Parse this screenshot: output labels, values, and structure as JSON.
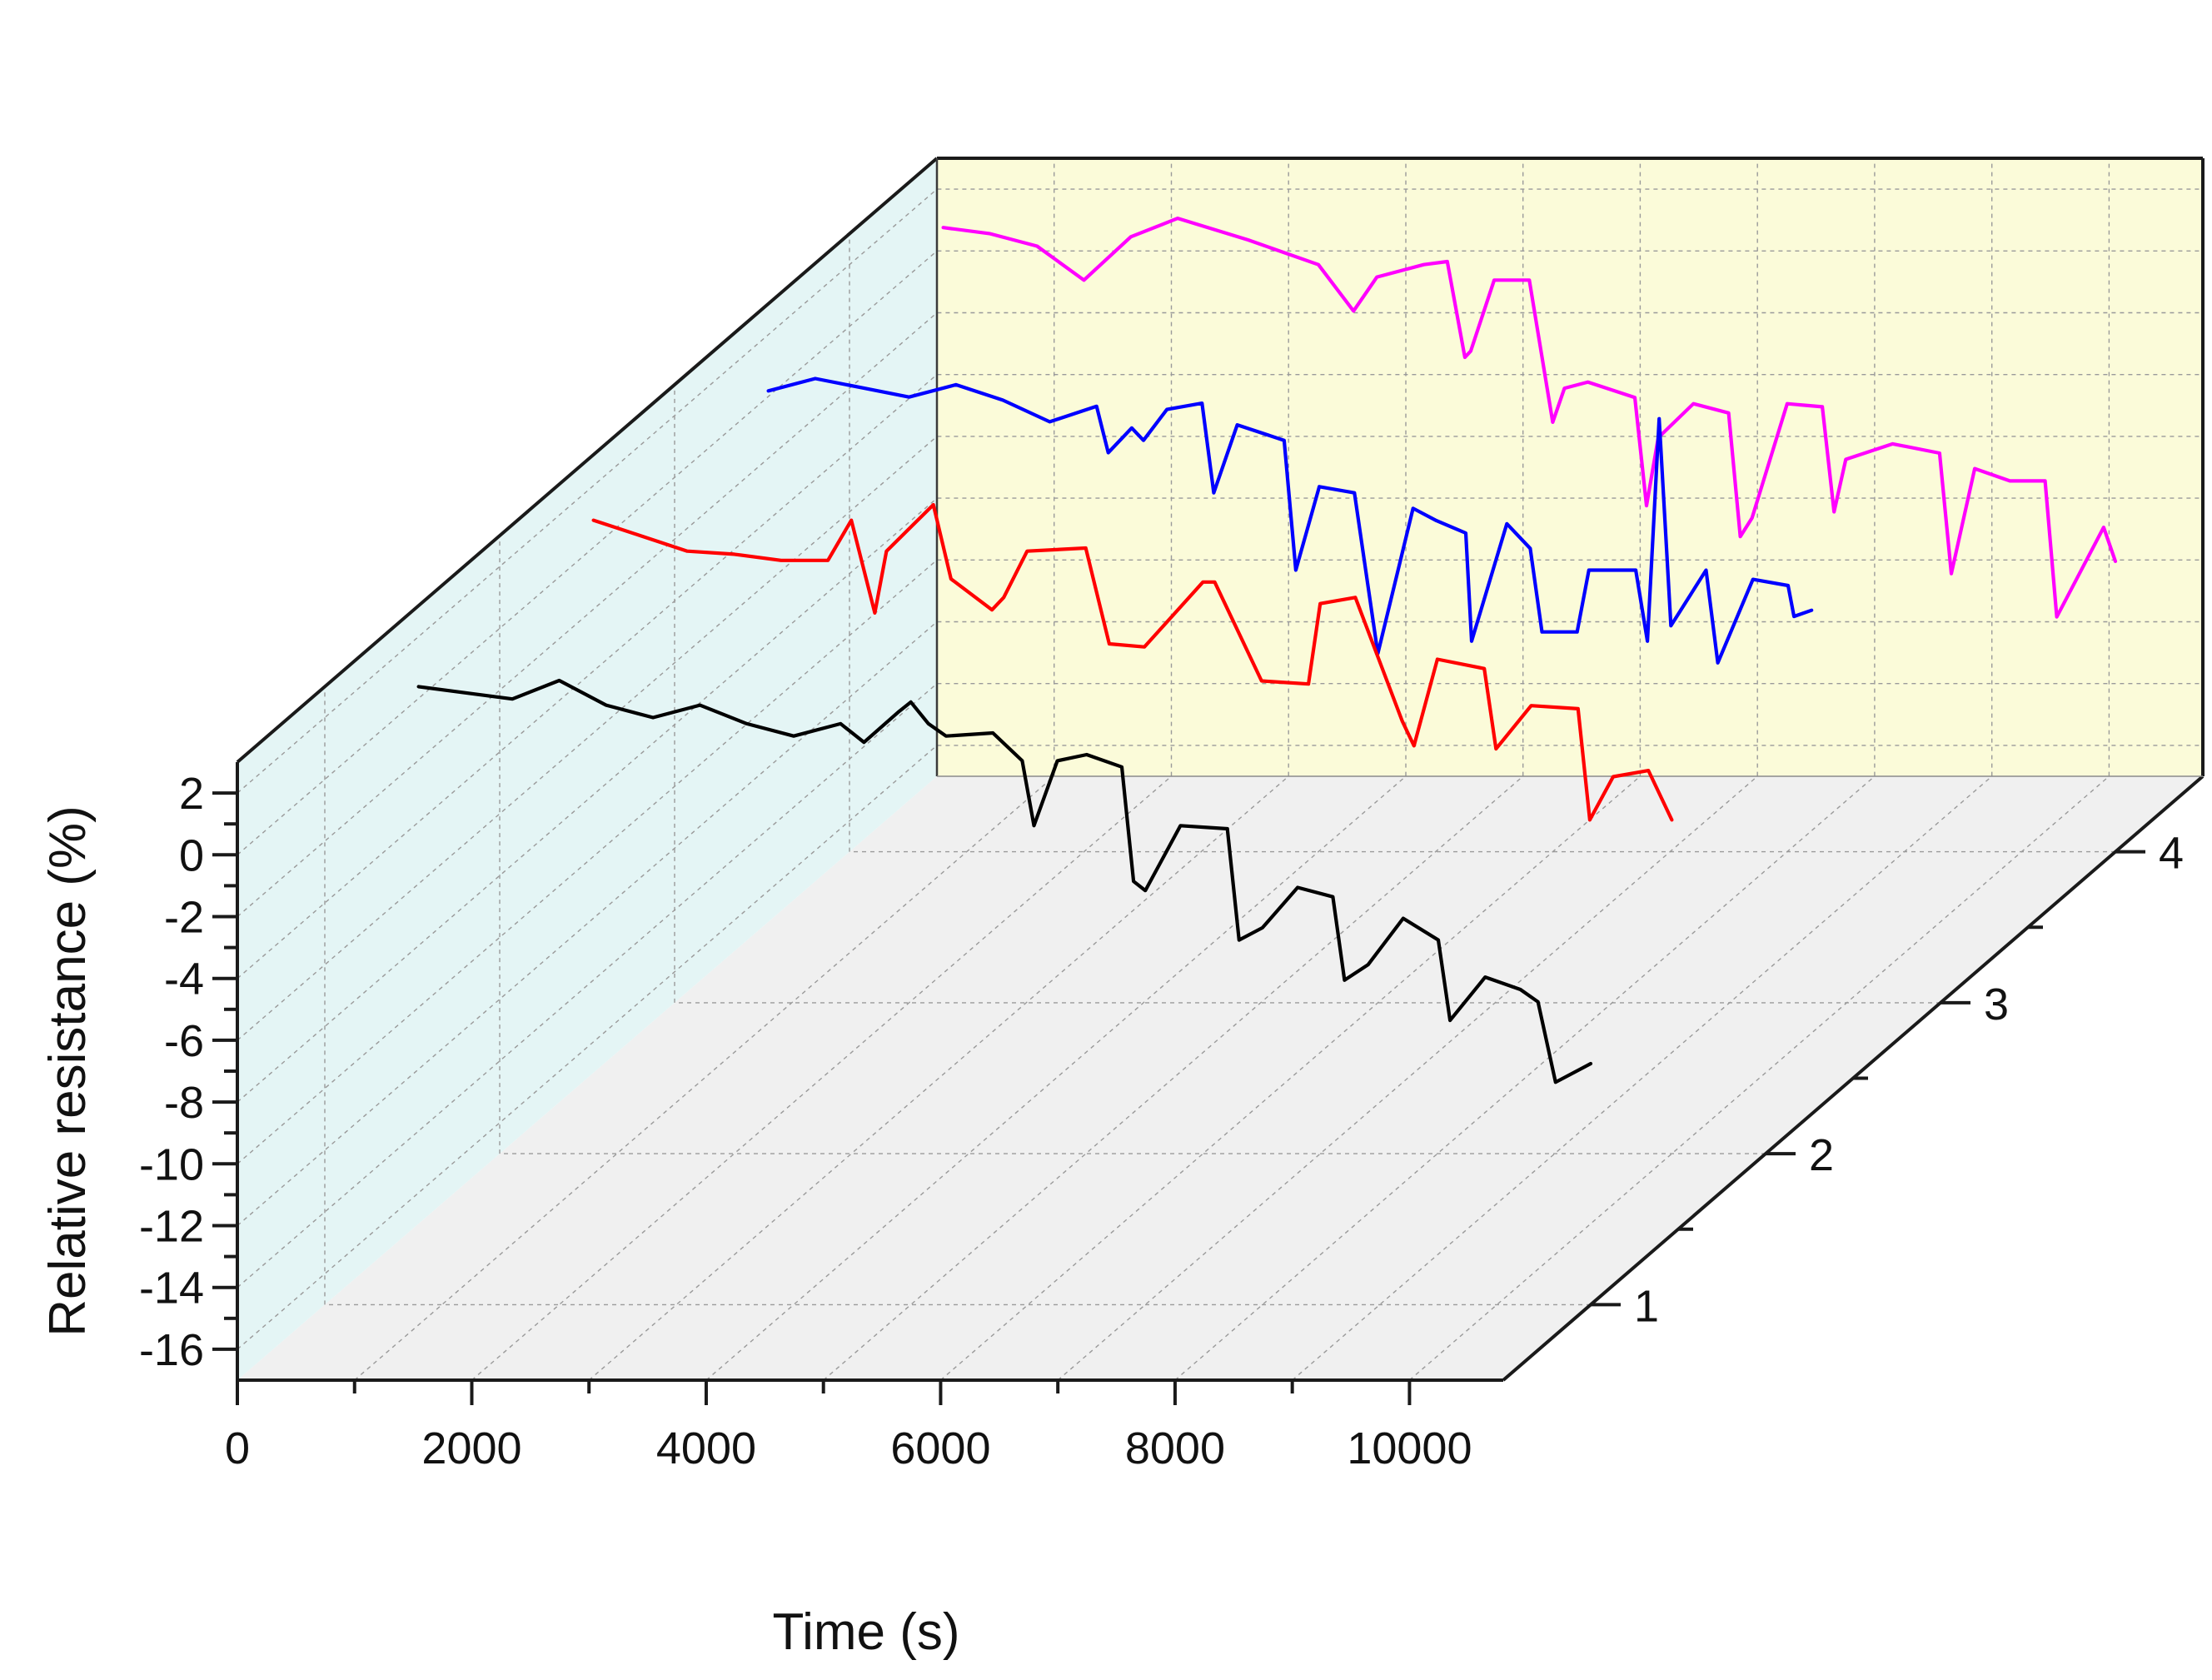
{
  "chart_data": {
    "type": "line",
    "title": "",
    "xlabel": "Time (s)",
    "ylabel": "Relative resistance (%)",
    "zlabel": "",
    "xlim": [
      0,
      10800
    ],
    "ylim": [
      -17,
      3
    ],
    "zlim": [
      0.5,
      4.5
    ],
    "x_ticks": [
      0,
      2000,
      4000,
      6000,
      8000,
      10000
    ],
    "y_ticks": [
      2,
      0,
      -2,
      -4,
      -6,
      -8,
      -10,
      -12,
      -14,
      -16
    ],
    "z_ticks": [
      1,
      2,
      3,
      4
    ],
    "grid": true,
    "colors": {
      "back_wall": "#fbfbd9",
      "side_wall": "#e4f5f5",
      "floor": "#f0f0f0"
    },
    "series": [
      {
        "z": 1,
        "color": "#000000",
        "x": [
          800,
          1200,
          1600,
          2000,
          2400,
          2800,
          3200,
          3600,
          4000,
          4400,
          4600,
          4900,
          5000,
          5150,
          5300,
          5700,
          5950,
          6050,
          6250,
          6500,
          6800,
          6900,
          7000,
          7300,
          7700,
          7800,
          8000,
          8300,
          8600,
          8700,
          8900,
          9200,
          9500,
          9600,
          9900,
          10200,
          10350,
          10500,
          10800
        ],
        "y": [
          3.0,
          2.8,
          2.6,
          3.2,
          2.4,
          2.0,
          2.4,
          1.8,
          1.4,
          1.8,
          1.2,
          2.2,
          2.5,
          1.8,
          1.4,
          1.5,
          0.6,
          -1.5,
          0.6,
          0.8,
          0.4,
          -3.3,
          -3.6,
          -1.5,
          -1.6,
          -5.2,
          -4.8,
          -3.5,
          -3.8,
          -6.5,
          -6.0,
          -4.5,
          -5.2,
          -7.8,
          -6.4,
          -6.8,
          -7.2,
          -9.8,
          -9.2
        ]
      },
      {
        "z": 2,
        "color": "#ff0000",
        "x": [
          800,
          1200,
          1600,
          2000,
          2400,
          2800,
          3000,
          3200,
          3300,
          3700,
          3850,
          4200,
          4300,
          4500,
          5000,
          5200,
          5500,
          6000,
          6100,
          6500,
          6900,
          7000,
          7300,
          7700,
          7800,
          8000,
          8400,
          8500,
          8800,
          9200,
          9300,
          9500,
          9800,
          10000
        ],
        "y": [
          3.5,
          3.0,
          2.5,
          2.4,
          2.2,
          2.2,
          3.5,
          0.5,
          2.5,
          4.0,
          1.6,
          0.6,
          1.0,
          2.5,
          2.6,
          -0.5,
          -0.6,
          1.5,
          1.5,
          -1.7,
          -1.8,
          0.8,
          1.0,
          -3.0,
          -3.8,
          -1.0,
          -1.3,
          -3.9,
          -2.5,
          -2.6,
          -6.2,
          -4.8,
          -4.6,
          -6.2
        ]
      },
      {
        "z": 3,
        "color": "#0000ff",
        "x": [
          800,
          1200,
          1600,
          2000,
          2400,
          2800,
          3200,
          3600,
          3700,
          3900,
          4000,
          4200,
          4500,
          4600,
          4800,
          5200,
          5300,
          5500,
          5800,
          6000,
          6300,
          6500,
          6750,
          6800,
          7100,
          7300,
          7400,
          7700,
          7800,
          8200,
          8300,
          8400,
          8500,
          8800,
          8900,
          9200,
          9500,
          9550,
          9700
        ],
        "y": [
          2.8,
          3.2,
          2.9,
          2.6,
          3.0,
          2.5,
          1.8,
          2.3,
          0.8,
          1.6,
          1.2,
          2.2,
          2.4,
          -0.5,
          1.7,
          1.2,
          -3.0,
          -0.3,
          -0.5,
          -5.7,
          -1.0,
          -1.4,
          -1.8,
          -5.3,
          -1.5,
          -2.3,
          -5.0,
          -5.0,
          -3.0,
          -3.0,
          -5.3,
          1.9,
          -4.8,
          -3.0,
          -6.0,
          -3.3,
          -3.5,
          -4.5,
          -4.3
        ]
      },
      {
        "z": 4,
        "color": "#ff00ff",
        "x": [
          800,
          1200,
          1600,
          2000,
          2400,
          2800,
          3400,
          4000,
          4300,
          4500,
          4900,
          5100,
          5250,
          5300,
          5500,
          5800,
          6000,
          6100,
          6300,
          6700,
          6800,
          6900,
          7200,
          7500,
          7600,
          7700,
          8000,
          8300,
          8400,
          8500,
          8900,
          9300,
          9400,
          9600,
          9900,
          10200,
          10300,
          10700,
          10800
        ],
        "y": [
          3.2,
          3.0,
          2.6,
          1.5,
          2.9,
          3.5,
          2.8,
          2.0,
          0.5,
          1.6,
          2.0,
          2.1,
          -1.0,
          -0.8,
          1.5,
          1.5,
          -3.1,
          -2.0,
          -1.8,
          -2.3,
          -5.8,
          -3.6,
          -2.5,
          -2.8,
          -6.8,
          -6.2,
          -2.5,
          -2.6,
          -6.0,
          -4.3,
          -3.8,
          -4.1,
          -8.0,
          -4.6,
          -5.0,
          -5.0,
          -9.4,
          -6.5,
          -7.6
        ]
      }
    ]
  }
}
